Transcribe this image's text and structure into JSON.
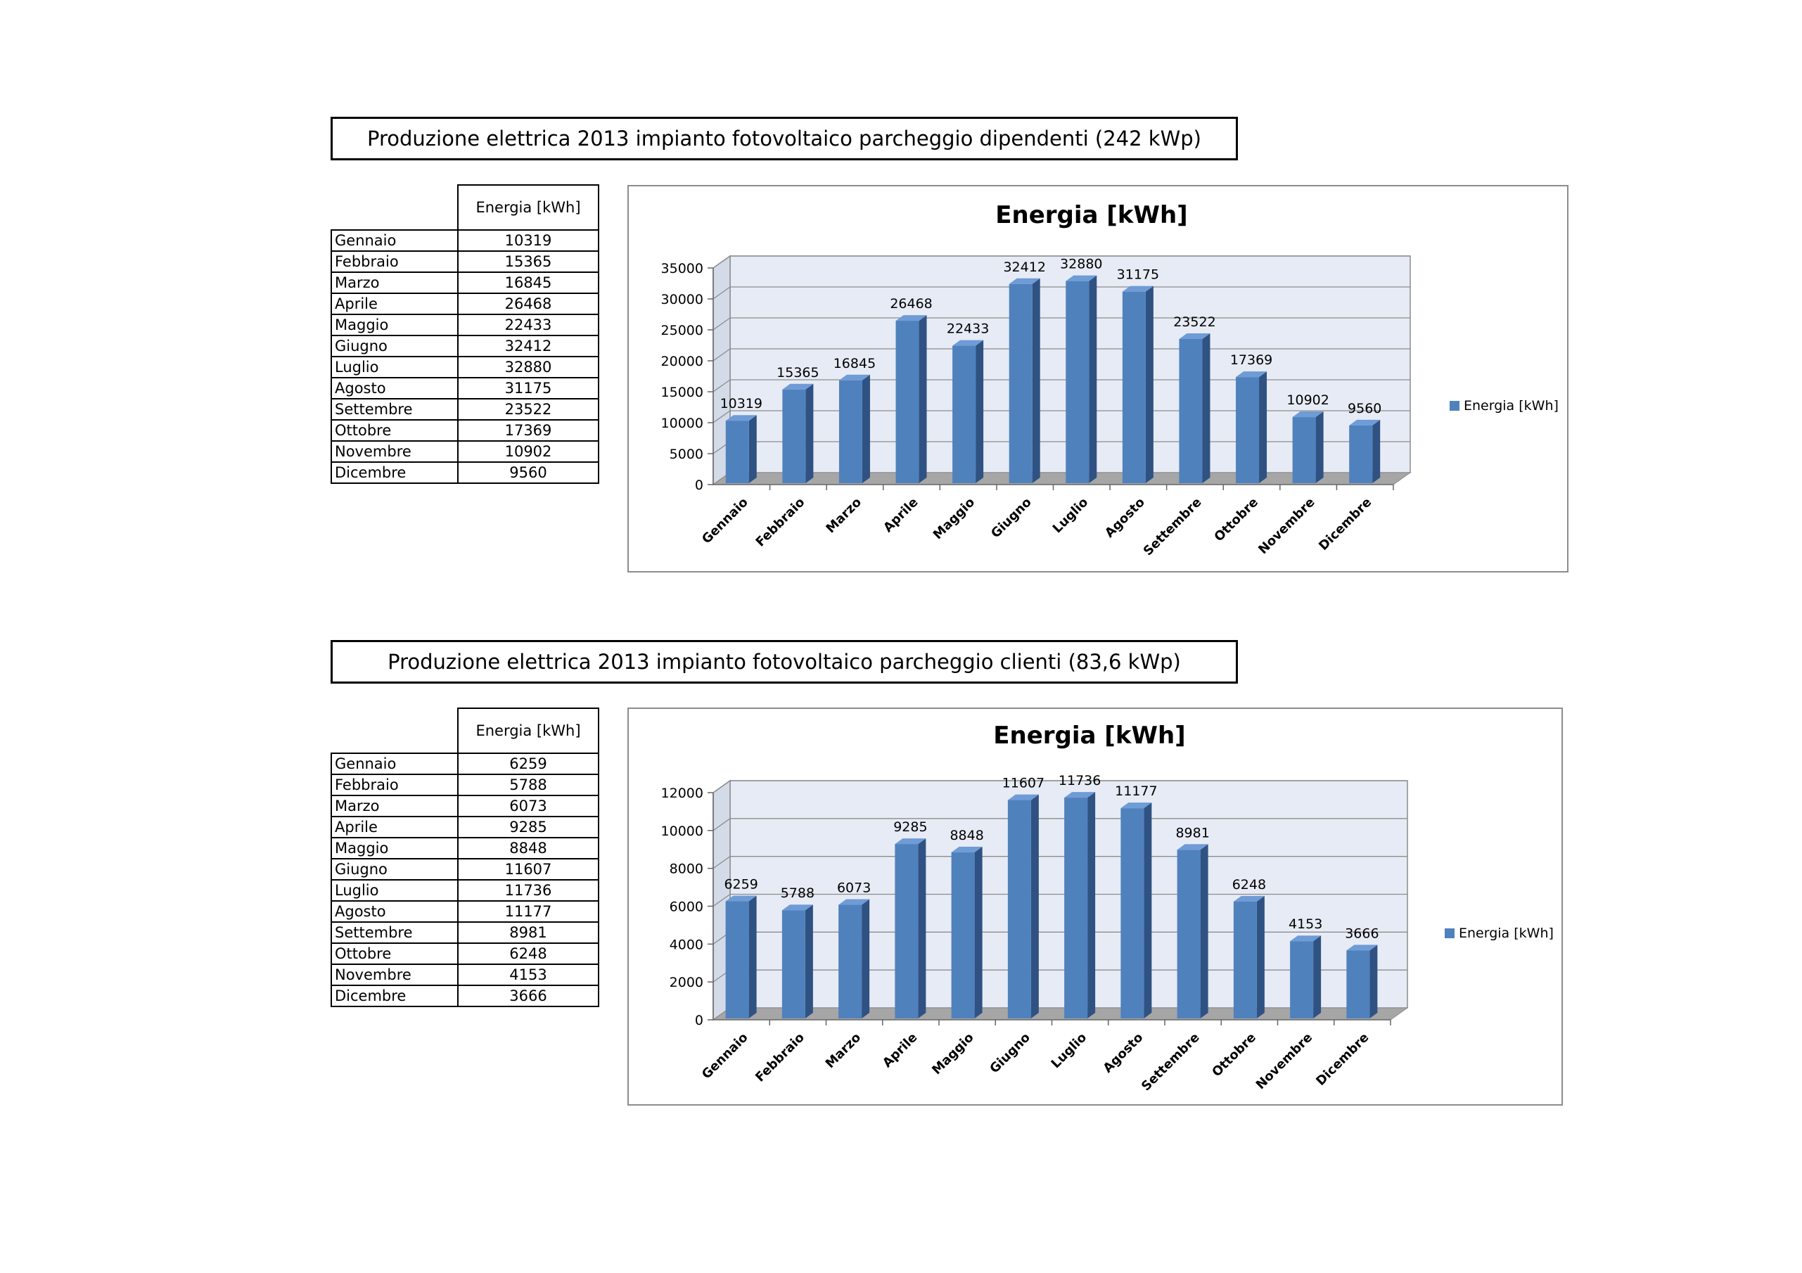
{
  "sections": [
    {
      "title": "Produzione elettrica 2013 impianto fotovoltaico parcheggio dipendenti (242 kWp)",
      "table_header": "Energia [kWh]",
      "rows": [
        {
          "month": "Gennaio",
          "value": "10319"
        },
        {
          "month": "Febbraio",
          "value": "15365"
        },
        {
          "month": "Marzo",
          "value": "16845"
        },
        {
          "month": "Aprile",
          "value": "26468"
        },
        {
          "month": "Maggio",
          "value": "22433"
        },
        {
          "month": "Giugno",
          "value": "32412"
        },
        {
          "month": "Luglio",
          "value": "32880"
        },
        {
          "month": "Agosto",
          "value": "31175"
        },
        {
          "month": "Settembre",
          "value": "23522"
        },
        {
          "month": "Ottobre",
          "value": "17369"
        },
        {
          "month": "Novembre",
          "value": "10902"
        },
        {
          "month": "Dicembre",
          "value": "9560"
        }
      ]
    },
    {
      "title": "Produzione elettrica 2013 impianto fotovoltaico parcheggio clienti (83,6 kWp)",
      "table_header": "Energia [kWh]",
      "rows": [
        {
          "month": "Gennaio",
          "value": "6259"
        },
        {
          "month": "Febbraio",
          "value": "5788"
        },
        {
          "month": "Marzo",
          "value": "6073"
        },
        {
          "month": "Aprile",
          "value": "9285"
        },
        {
          "month": "Maggio",
          "value": "8848"
        },
        {
          "month": "Giugno",
          "value": "11607"
        },
        {
          "month": "Luglio",
          "value": "11736"
        },
        {
          "month": "Agosto",
          "value": "11177"
        },
        {
          "month": "Settembre",
          "value": "8981"
        },
        {
          "month": "Ottobre",
          "value": "6248"
        },
        {
          "month": "Novembre",
          "value": "4153"
        },
        {
          "month": "Dicembre",
          "value": "3666"
        }
      ]
    }
  ],
  "colors": {
    "bar_front": "#4f81bd",
    "bar_side": "#2f5282",
    "bar_top": "#6f9bd6",
    "plot_back": "#e6ebf5",
    "floor": "#a6a6a6",
    "gridline": "#8c8c8c"
  },
  "chart_data": [
    {
      "type": "bar",
      "title": "Energia [kWh]",
      "categories": [
        "Gennaio",
        "Febbraio",
        "Marzo",
        "Aprile",
        "Maggio",
        "Giugno",
        "Luglio",
        "Agosto",
        "Settembre",
        "Ottobre",
        "Novembre",
        "Dicembre"
      ],
      "series": [
        {
          "name": "Energia [kWh]",
          "values": [
            10319,
            15365,
            16845,
            26468,
            22433,
            32412,
            32880,
            31175,
            23522,
            17369,
            10902,
            9560
          ]
        }
      ],
      "ylim": [
        0,
        35000
      ],
      "yticks": [
        0,
        5000,
        10000,
        15000,
        20000,
        25000,
        30000,
        35000
      ],
      "grid": true,
      "legend_position": "right",
      "style": "3d-column"
    },
    {
      "type": "bar",
      "title": "Energia [kWh]",
      "categories": [
        "Gennaio",
        "Febbraio",
        "Marzo",
        "Aprile",
        "Maggio",
        "Giugno",
        "Luglio",
        "Agosto",
        "Settembre",
        "Ottobre",
        "Novembre",
        "Dicembre"
      ],
      "series": [
        {
          "name": "Energia [kWh]",
          "values": [
            6259,
            5788,
            6073,
            9285,
            8848,
            11607,
            11736,
            11177,
            8981,
            6248,
            4153,
            3666
          ]
        }
      ],
      "ylim": [
        0,
        12000
      ],
      "yticks": [
        0,
        2000,
        4000,
        6000,
        8000,
        10000,
        12000
      ],
      "grid": true,
      "legend_position": "right",
      "style": "3d-column"
    }
  ]
}
